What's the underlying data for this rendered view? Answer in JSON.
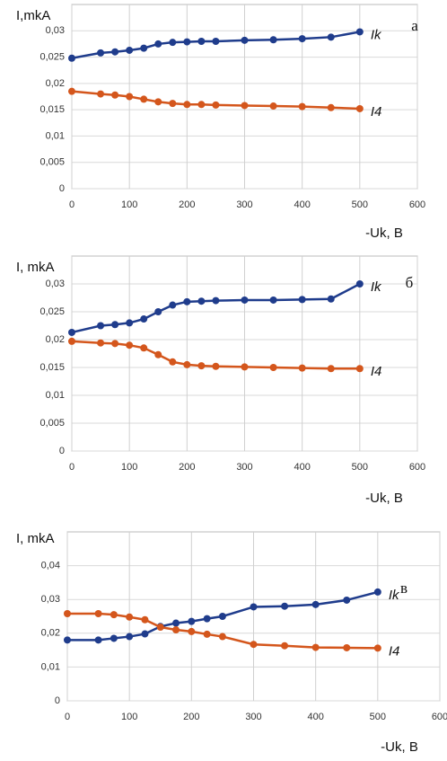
{
  "chart_data": [
    {
      "type": "line",
      "annotation": "а",
      "ylabel": "I,mkA",
      "xlabel": "-Uk, В",
      "x": [
        0,
        50,
        75,
        100,
        125,
        150,
        175,
        200,
        225,
        250,
        300,
        350,
        400,
        450,
        500
      ],
      "series": [
        {
          "name": "Ik",
          "color": "#1f3c8c",
          "values": [
            0.0248,
            0.0258,
            0.026,
            0.0263,
            0.0267,
            0.0275,
            0.0278,
            0.0279,
            0.028,
            0.028,
            0.0282,
            0.0283,
            0.0285,
            0.0288,
            0.0298
          ]
        },
        {
          "name": "I4",
          "color": "#d4561c",
          "values": [
            0.0185,
            0.018,
            0.0178,
            0.0175,
            0.017,
            0.0165,
            0.0162,
            0.016,
            0.016,
            0.0159,
            0.0158,
            0.0157,
            0.0156,
            0.0154,
            0.0152
          ]
        }
      ],
      "xlim": [
        0,
        600
      ],
      "xticks": [
        0,
        100,
        200,
        300,
        400,
        500,
        600
      ],
      "ylim": [
        0,
        0.035
      ],
      "yticks": [
        0,
        {
          "value": 0.005,
          "label": "0,005"
        },
        {
          "value": 0.01,
          "label": "0,01"
        },
        {
          "value": 0.015,
          "label": "0,015"
        },
        {
          "value": 0.02,
          "label": "0,02"
        },
        {
          "value": 0.025,
          "label": "0,025"
        },
        {
          "value": 0.03,
          "label": "0,03"
        }
      ],
      "grid": true
    },
    {
      "type": "line",
      "annotation": "б",
      "ylabel": "I, mkA",
      "xlabel": "-Uk, В",
      "x": [
        0,
        50,
        75,
        100,
        125,
        150,
        175,
        200,
        225,
        250,
        300,
        350,
        400,
        450,
        500
      ],
      "series": [
        {
          "name": "Ik",
          "color": "#1f3c8c",
          "values": [
            0.0213,
            0.0225,
            0.0227,
            0.023,
            0.0237,
            0.025,
            0.0262,
            0.0268,
            0.0269,
            0.027,
            0.0271,
            0.0271,
            0.0272,
            0.0273,
            0.03
          ]
        },
        {
          "name": "I4",
          "color": "#d4561c",
          "values": [
            0.0197,
            0.0194,
            0.0193,
            0.019,
            0.0185,
            0.0173,
            0.016,
            0.0155,
            0.0153,
            0.0152,
            0.0151,
            0.015,
            0.0149,
            0.0148,
            0.0148
          ]
        }
      ],
      "xlim": [
        0,
        600
      ],
      "xticks": [
        0,
        100,
        200,
        300,
        400,
        500,
        600
      ],
      "ylim": [
        0,
        0.035
      ],
      "yticks": [
        0,
        {
          "value": 0.005,
          "label": "0,005"
        },
        {
          "value": 0.01,
          "label": "0,01"
        },
        {
          "value": 0.015,
          "label": "0,015"
        },
        {
          "value": 0.02,
          "label": "0,02"
        },
        {
          "value": 0.025,
          "label": "0,025"
        },
        {
          "value": 0.03,
          "label": "0,03"
        }
      ],
      "grid": true
    },
    {
      "type": "line",
      "annotation": "в",
      "ylabel": "I, mkA",
      "xlabel": "-Uk, В",
      "x": [
        0,
        50,
        75,
        100,
        125,
        150,
        175,
        200,
        225,
        250,
        300,
        350,
        400,
        450,
        500
      ],
      "series": [
        {
          "name": "Ik",
          "color": "#1f3c8c",
          "values": [
            0.018,
            0.018,
            0.0185,
            0.019,
            0.0198,
            0.022,
            0.023,
            0.0235,
            0.0243,
            0.025,
            0.0278,
            0.028,
            0.0285,
            0.0298,
            0.0322
          ]
        },
        {
          "name": "I4",
          "color": "#d4561c",
          "values": [
            0.0258,
            0.0258,
            0.0255,
            0.0248,
            0.024,
            0.0218,
            0.021,
            0.0205,
            0.0197,
            0.019,
            0.0167,
            0.0163,
            0.0158,
            0.0157,
            0.0156
          ]
        }
      ],
      "xlim": [
        0,
        600
      ],
      "xticks": [
        0,
        100,
        200,
        300,
        400,
        500,
        600
      ],
      "ylim": [
        0,
        0.05
      ],
      "yticks": [
        0,
        {
          "value": 0.01,
          "label": "0,01"
        },
        {
          "value": 0.02,
          "label": "0,02"
        },
        {
          "value": 0.03,
          "label": "0,03"
        },
        {
          "value": 0.04,
          "label": "0,04"
        }
      ],
      "grid": true
    }
  ]
}
